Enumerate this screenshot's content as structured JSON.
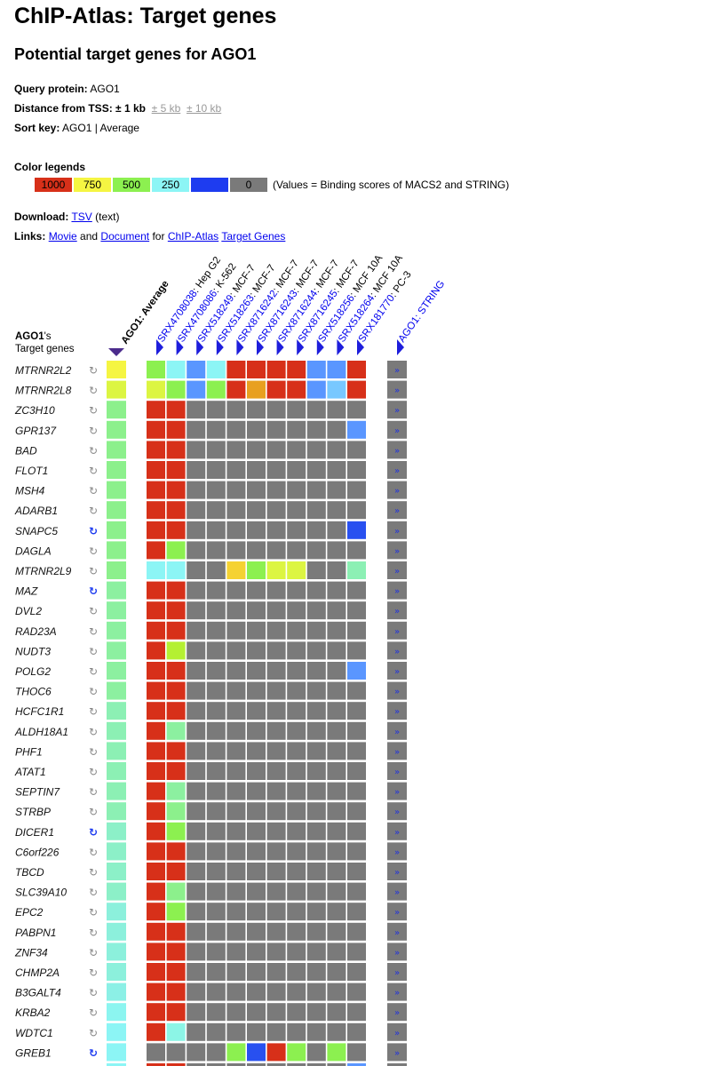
{
  "page": {
    "title": "ChIP-Atlas: Target genes",
    "subtitle": "Potential target genes for AGO1"
  },
  "info": {
    "query_label": "Query protein:",
    "query_value": "AGO1",
    "distance_label": "Distance from TSS:",
    "distance_value": "± 1 kb",
    "distance_alt1": "± 5 kb",
    "distance_alt2": "± 10 kb",
    "sort_label": "Sort key:",
    "sort_value": "AGO1 | Average"
  },
  "legend": {
    "title": "Color legends",
    "items": [
      {
        "label": "1000",
        "color": "#d73019"
      },
      {
        "label": "750",
        "color": "#f5f542"
      },
      {
        "label": "500",
        "color": "#8cf050"
      },
      {
        "label": "250",
        "color": "#8cf5f5"
      },
      {
        "label": "",
        "color": "#1e3cf0"
      },
      {
        "label": "0",
        "color": "#7a7a7a"
      }
    ],
    "note": "(Values = Binding scores of MACS2 and STRING)"
  },
  "download": {
    "label": "Download:",
    "tsv": "TSV",
    "suffix": "(text)"
  },
  "links": {
    "label": "Links:",
    "movie": "Movie",
    "and": "and",
    "document": "Document",
    "for": "for",
    "chipatlas": "ChIP-Atlas",
    "targetgenes": "Target Genes"
  },
  "table": {
    "gene_header_protein": "AGO1",
    "gene_header_suffix": "'s",
    "gene_header_line2": "Target genes",
    "average_header": "AGO1: Average",
    "string_header": "AGO1: STRING",
    "experiments": [
      {
        "id": "SRX4708038",
        "cell": ": Hep G2"
      },
      {
        "id": "SRX4708086",
        "cell": ": K-562"
      },
      {
        "id": "SRX518249",
        "cell": ": MCF-7"
      },
      {
        "id": "SRX518263",
        "cell": ": MCF-7"
      },
      {
        "id": "SRX8716242",
        "cell": ": MCF-7"
      },
      {
        "id": "SRX8716243",
        "cell": ": MCF-7"
      },
      {
        "id": "SRX8716244",
        "cell": ": MCF-7"
      },
      {
        "id": "SRX8716245",
        "cell": ": MCF-7"
      },
      {
        "id": "SRX518256",
        "cell": ": MCF 10A"
      },
      {
        "id": "SRX518264",
        "cell": ": MCF 10A"
      },
      {
        "id": "SRX181770",
        "cell": ": PC-3"
      }
    ],
    "string_symbol": "»",
    "refresh_symbol": "↻",
    "genes": [
      {
        "name": "MTRNR2L2",
        "refresh": "grey",
        "avg": "#f5f542",
        "cells": [
          "#8cf050",
          "#8cf5f5",
          "#5a96ff",
          "#8cf5f5",
          "#d73019",
          "#d73019",
          "#d73019",
          "#d73019",
          "#5a96ff",
          "#5a96ff",
          "#d73019"
        ]
      },
      {
        "name": "MTRNR2L8",
        "refresh": "grey",
        "avg": "#dcf542",
        "cells": [
          "#dcf542",
          "#8cf050",
          "#5a96ff",
          "#8cf050",
          "#d73019",
          "#e8a020",
          "#d73019",
          "#d73019",
          "#5a96ff",
          "#78c8ff",
          "#d73019"
        ]
      },
      {
        "name": "ZC3H10",
        "refresh": "grey",
        "avg": "#8cf08c",
        "cells": [
          "#d73019",
          "#d73019",
          "#7a7a7a",
          "#7a7a7a",
          "#7a7a7a",
          "#7a7a7a",
          "#7a7a7a",
          "#7a7a7a",
          "#7a7a7a",
          "#7a7a7a",
          "#7a7a7a"
        ]
      },
      {
        "name": "GPR137",
        "refresh": "grey",
        "avg": "#8cf08c",
        "cells": [
          "#d73019",
          "#d73019",
          "#7a7a7a",
          "#7a7a7a",
          "#7a7a7a",
          "#7a7a7a",
          "#7a7a7a",
          "#7a7a7a",
          "#7a7a7a",
          "#7a7a7a",
          "#5a96ff"
        ]
      },
      {
        "name": "BAD",
        "refresh": "grey",
        "avg": "#8cf08c",
        "cells": [
          "#d73019",
          "#d73019",
          "#7a7a7a",
          "#7a7a7a",
          "#7a7a7a",
          "#7a7a7a",
          "#7a7a7a",
          "#7a7a7a",
          "#7a7a7a",
          "#7a7a7a",
          "#7a7a7a"
        ]
      },
      {
        "name": "FLOT1",
        "refresh": "grey",
        "avg": "#8cf08c",
        "cells": [
          "#d73019",
          "#d73019",
          "#7a7a7a",
          "#7a7a7a",
          "#7a7a7a",
          "#7a7a7a",
          "#7a7a7a",
          "#7a7a7a",
          "#7a7a7a",
          "#7a7a7a",
          "#7a7a7a"
        ]
      },
      {
        "name": "MSH4",
        "refresh": "grey",
        "avg": "#8cf08c",
        "cells": [
          "#d73019",
          "#d73019",
          "#7a7a7a",
          "#7a7a7a",
          "#7a7a7a",
          "#7a7a7a",
          "#7a7a7a",
          "#7a7a7a",
          "#7a7a7a",
          "#7a7a7a",
          "#7a7a7a"
        ]
      },
      {
        "name": "ADARB1",
        "refresh": "grey",
        "avg": "#8cf08c",
        "cells": [
          "#d73019",
          "#d73019",
          "#7a7a7a",
          "#7a7a7a",
          "#7a7a7a",
          "#7a7a7a",
          "#7a7a7a",
          "#7a7a7a",
          "#7a7a7a",
          "#7a7a7a",
          "#7a7a7a"
        ]
      },
      {
        "name": "SNAPC5",
        "refresh": "blue",
        "avg": "#8cf08c",
        "cells": [
          "#d73019",
          "#d73019",
          "#7a7a7a",
          "#7a7a7a",
          "#7a7a7a",
          "#7a7a7a",
          "#7a7a7a",
          "#7a7a7a",
          "#7a7a7a",
          "#7a7a7a",
          "#2850f0"
        ]
      },
      {
        "name": "DAGLA",
        "refresh": "grey",
        "avg": "#8cf08c",
        "cells": [
          "#d73019",
          "#8cf050",
          "#7a7a7a",
          "#7a7a7a",
          "#7a7a7a",
          "#7a7a7a",
          "#7a7a7a",
          "#7a7a7a",
          "#7a7a7a",
          "#7a7a7a",
          "#7a7a7a"
        ]
      },
      {
        "name": "MTRNR2L9",
        "refresh": "grey",
        "avg": "#8cf08c",
        "cells": [
          "#8cf5f5",
          "#8cf5f5",
          "#7a7a7a",
          "#7a7a7a",
          "#f5d232",
          "#8cf050",
          "#dcf542",
          "#dcf542",
          "#7a7a7a",
          "#7a7a7a",
          "#8cf0b4"
        ]
      },
      {
        "name": "MAZ",
        "refresh": "blue",
        "avg": "#8cf0a0",
        "cells": [
          "#d73019",
          "#d73019",
          "#7a7a7a",
          "#7a7a7a",
          "#7a7a7a",
          "#7a7a7a",
          "#7a7a7a",
          "#7a7a7a",
          "#7a7a7a",
          "#7a7a7a",
          "#7a7a7a"
        ]
      },
      {
        "name": "DVL2",
        "refresh": "grey",
        "avg": "#8cf0a0",
        "cells": [
          "#d73019",
          "#d73019",
          "#7a7a7a",
          "#7a7a7a",
          "#7a7a7a",
          "#7a7a7a",
          "#7a7a7a",
          "#7a7a7a",
          "#7a7a7a",
          "#7a7a7a",
          "#7a7a7a"
        ]
      },
      {
        "name": "RAD23A",
        "refresh": "grey",
        "avg": "#8cf0a0",
        "cells": [
          "#d73019",
          "#d73019",
          "#7a7a7a",
          "#7a7a7a",
          "#7a7a7a",
          "#7a7a7a",
          "#7a7a7a",
          "#7a7a7a",
          "#7a7a7a",
          "#7a7a7a",
          "#7a7a7a"
        ]
      },
      {
        "name": "NUDT3",
        "refresh": "grey",
        "avg": "#8cf0a0",
        "cells": [
          "#d73019",
          "#b4f032",
          "#7a7a7a",
          "#7a7a7a",
          "#7a7a7a",
          "#7a7a7a",
          "#7a7a7a",
          "#7a7a7a",
          "#7a7a7a",
          "#7a7a7a",
          "#7a7a7a"
        ]
      },
      {
        "name": "POLG2",
        "refresh": "grey",
        "avg": "#8cf0a0",
        "cells": [
          "#d73019",
          "#d73019",
          "#7a7a7a",
          "#7a7a7a",
          "#7a7a7a",
          "#7a7a7a",
          "#7a7a7a",
          "#7a7a7a",
          "#7a7a7a",
          "#7a7a7a",
          "#5a96ff"
        ]
      },
      {
        "name": "THOC6",
        "refresh": "grey",
        "avg": "#8cf0a0",
        "cells": [
          "#d73019",
          "#d73019",
          "#7a7a7a",
          "#7a7a7a",
          "#7a7a7a",
          "#7a7a7a",
          "#7a7a7a",
          "#7a7a7a",
          "#7a7a7a",
          "#7a7a7a",
          "#7a7a7a"
        ]
      },
      {
        "name": "HCFC1R1",
        "refresh": "grey",
        "avg": "#8cf0b4",
        "cells": [
          "#d73019",
          "#d73019",
          "#7a7a7a",
          "#7a7a7a",
          "#7a7a7a",
          "#7a7a7a",
          "#7a7a7a",
          "#7a7a7a",
          "#7a7a7a",
          "#7a7a7a",
          "#7a7a7a"
        ]
      },
      {
        "name": "ALDH18A1",
        "refresh": "grey",
        "avg": "#8cf0b4",
        "cells": [
          "#d73019",
          "#8cf0a0",
          "#7a7a7a",
          "#7a7a7a",
          "#7a7a7a",
          "#7a7a7a",
          "#7a7a7a",
          "#7a7a7a",
          "#7a7a7a",
          "#7a7a7a",
          "#7a7a7a"
        ]
      },
      {
        "name": "PHF1",
        "refresh": "grey",
        "avg": "#8cf0b4",
        "cells": [
          "#d73019",
          "#d73019",
          "#7a7a7a",
          "#7a7a7a",
          "#7a7a7a",
          "#7a7a7a",
          "#7a7a7a",
          "#7a7a7a",
          "#7a7a7a",
          "#7a7a7a",
          "#7a7a7a"
        ]
      },
      {
        "name": "ATAT1",
        "refresh": "grey",
        "avg": "#8cf0b4",
        "cells": [
          "#d73019",
          "#d73019",
          "#7a7a7a",
          "#7a7a7a",
          "#7a7a7a",
          "#7a7a7a",
          "#7a7a7a",
          "#7a7a7a",
          "#7a7a7a",
          "#7a7a7a",
          "#7a7a7a"
        ]
      },
      {
        "name": "SEPTIN7",
        "refresh": "grey",
        "avg": "#8cf0b4",
        "cells": [
          "#d73019",
          "#8cf0a0",
          "#7a7a7a",
          "#7a7a7a",
          "#7a7a7a",
          "#7a7a7a",
          "#7a7a7a",
          "#7a7a7a",
          "#7a7a7a",
          "#7a7a7a",
          "#7a7a7a"
        ]
      },
      {
        "name": "STRBP",
        "refresh": "grey",
        "avg": "#8cf0b4",
        "cells": [
          "#d73019",
          "#8cf08c",
          "#7a7a7a",
          "#7a7a7a",
          "#7a7a7a",
          "#7a7a7a",
          "#7a7a7a",
          "#7a7a7a",
          "#7a7a7a",
          "#7a7a7a",
          "#7a7a7a"
        ]
      },
      {
        "name": "DICER1",
        "refresh": "blue",
        "avg": "#8cf0c8",
        "cells": [
          "#d73019",
          "#8cf050",
          "#7a7a7a",
          "#7a7a7a",
          "#7a7a7a",
          "#7a7a7a",
          "#7a7a7a",
          "#7a7a7a",
          "#7a7a7a",
          "#7a7a7a",
          "#7a7a7a"
        ]
      },
      {
        "name": "C6orf226",
        "refresh": "grey",
        "avg": "#8cf0c8",
        "cells": [
          "#d73019",
          "#d73019",
          "#7a7a7a",
          "#7a7a7a",
          "#7a7a7a",
          "#7a7a7a",
          "#7a7a7a",
          "#7a7a7a",
          "#7a7a7a",
          "#7a7a7a",
          "#7a7a7a"
        ]
      },
      {
        "name": "TBCD",
        "refresh": "grey",
        "avg": "#8cf0c8",
        "cells": [
          "#d73019",
          "#d73019",
          "#7a7a7a",
          "#7a7a7a",
          "#7a7a7a",
          "#7a7a7a",
          "#7a7a7a",
          "#7a7a7a",
          "#7a7a7a",
          "#7a7a7a",
          "#7a7a7a"
        ]
      },
      {
        "name": "SLC39A10",
        "refresh": "grey",
        "avg": "#8cf0c8",
        "cells": [
          "#d73019",
          "#8cf08c",
          "#7a7a7a",
          "#7a7a7a",
          "#7a7a7a",
          "#7a7a7a",
          "#7a7a7a",
          "#7a7a7a",
          "#7a7a7a",
          "#7a7a7a",
          "#7a7a7a"
        ]
      },
      {
        "name": "EPC2",
        "refresh": "grey",
        "avg": "#8cf0dc",
        "cells": [
          "#d73019",
          "#8cf050",
          "#7a7a7a",
          "#7a7a7a",
          "#7a7a7a",
          "#7a7a7a",
          "#7a7a7a",
          "#7a7a7a",
          "#7a7a7a",
          "#7a7a7a",
          "#7a7a7a"
        ]
      },
      {
        "name": "PABPN1",
        "refresh": "grey",
        "avg": "#8cf0dc",
        "cells": [
          "#d73019",
          "#d73019",
          "#7a7a7a",
          "#7a7a7a",
          "#7a7a7a",
          "#7a7a7a",
          "#7a7a7a",
          "#7a7a7a",
          "#7a7a7a",
          "#7a7a7a",
          "#7a7a7a"
        ]
      },
      {
        "name": "ZNF34",
        "refresh": "grey",
        "avg": "#8cf0dc",
        "cells": [
          "#d73019",
          "#d73019",
          "#7a7a7a",
          "#7a7a7a",
          "#7a7a7a",
          "#7a7a7a",
          "#7a7a7a",
          "#7a7a7a",
          "#7a7a7a",
          "#7a7a7a",
          "#7a7a7a"
        ]
      },
      {
        "name": "CHMP2A",
        "refresh": "grey",
        "avg": "#8cf0dc",
        "cells": [
          "#d73019",
          "#d73019",
          "#7a7a7a",
          "#7a7a7a",
          "#7a7a7a",
          "#7a7a7a",
          "#7a7a7a",
          "#7a7a7a",
          "#7a7a7a",
          "#7a7a7a",
          "#7a7a7a"
        ]
      },
      {
        "name": "B3GALT4",
        "refresh": "grey",
        "avg": "#8cf0e6",
        "cells": [
          "#d73019",
          "#d73019",
          "#7a7a7a",
          "#7a7a7a",
          "#7a7a7a",
          "#7a7a7a",
          "#7a7a7a",
          "#7a7a7a",
          "#7a7a7a",
          "#7a7a7a",
          "#7a7a7a"
        ]
      },
      {
        "name": "KRBA2",
        "refresh": "grey",
        "avg": "#8cf5f0",
        "cells": [
          "#d73019",
          "#d73019",
          "#7a7a7a",
          "#7a7a7a",
          "#7a7a7a",
          "#7a7a7a",
          "#7a7a7a",
          "#7a7a7a",
          "#7a7a7a",
          "#7a7a7a",
          "#7a7a7a"
        ]
      },
      {
        "name": "WDTC1",
        "refresh": "grey",
        "avg": "#8cf5f5",
        "cells": [
          "#d73019",
          "#8cf5e6",
          "#7a7a7a",
          "#7a7a7a",
          "#7a7a7a",
          "#7a7a7a",
          "#7a7a7a",
          "#7a7a7a",
          "#7a7a7a",
          "#7a7a7a",
          "#7a7a7a"
        ]
      },
      {
        "name": "GREB1",
        "refresh": "blue",
        "avg": "#8cf5f5",
        "cells": [
          "#7a7a7a",
          "#7a7a7a",
          "#7a7a7a",
          "#7a7a7a",
          "#8cf050",
          "#2850f0",
          "#d73019",
          "#8cf050",
          "#7a7a7a",
          "#8cf050",
          "#7a7a7a"
        ]
      }
    ],
    "partial_row": {
      "avg": "#8cf5f5",
      "cells": [
        "#d73019",
        "#d73019",
        "#7a7a7a",
        "#7a7a7a",
        "#7a7a7a",
        "#7a7a7a",
        "#7a7a7a",
        "#7a7a7a",
        "#7a7a7a",
        "#7a7a7a",
        "#5a96ff"
      ]
    }
  },
  "colors": {
    "link": "#0000ee",
    "grey_cell": "#7a7a7a",
    "string_cell": "#7a7a7a",
    "arrow_blue": "#1e1edc",
    "sort_arrow": "#4b2b8c"
  }
}
